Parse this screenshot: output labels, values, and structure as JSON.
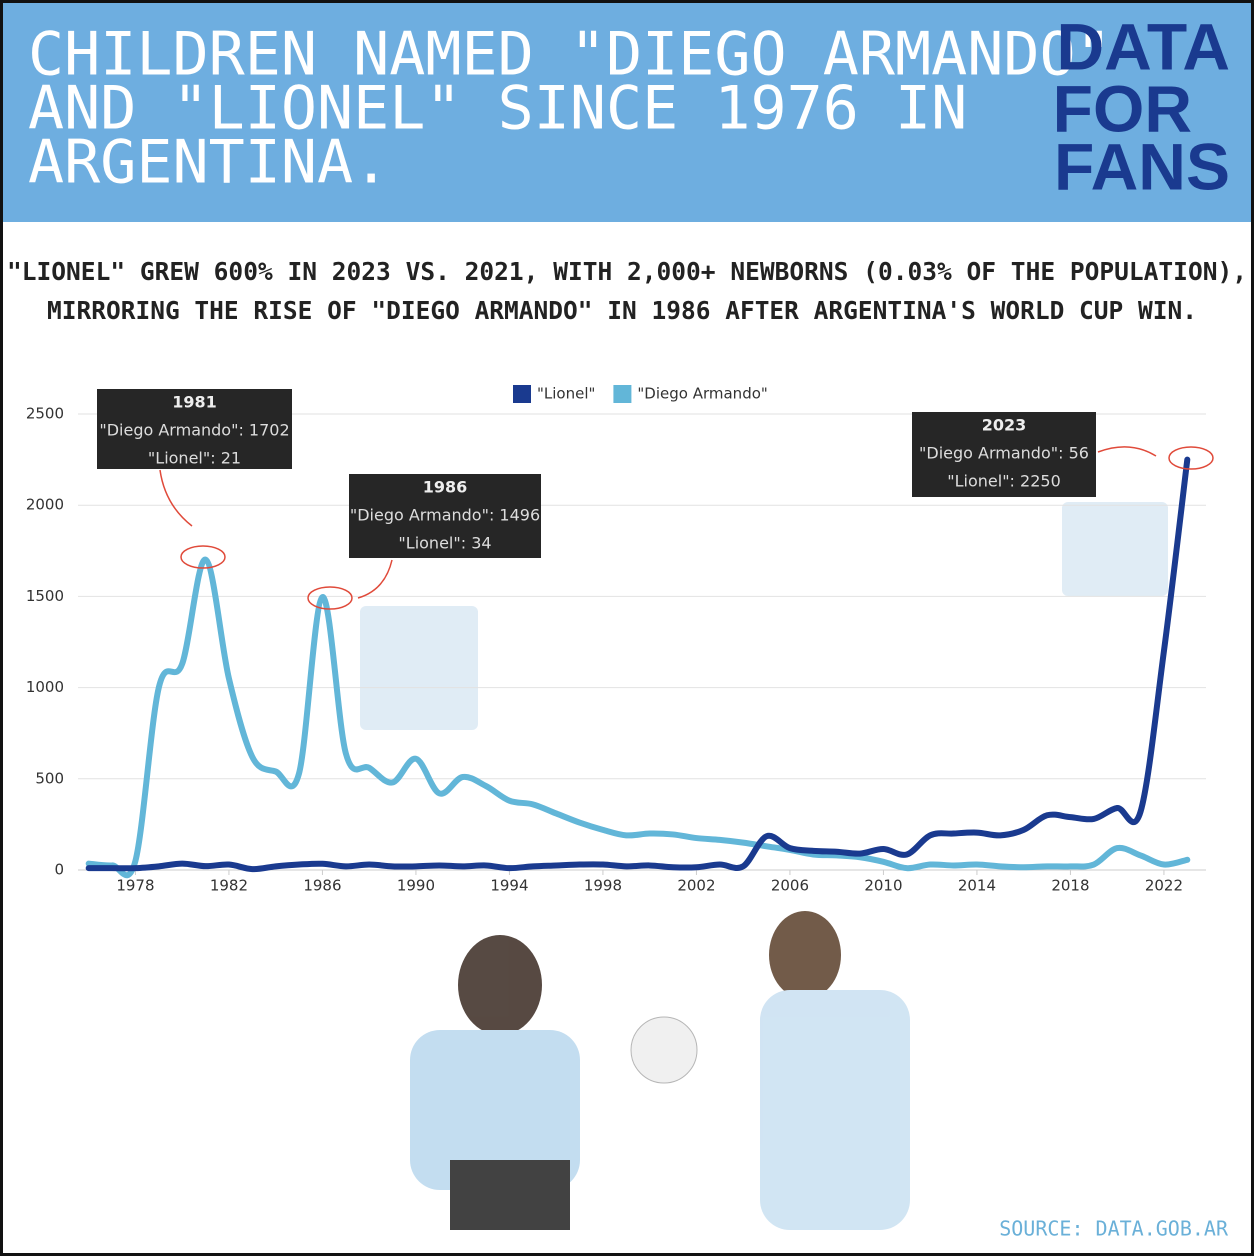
{
  "chart_data": {
    "type": "line",
    "title": [
      "CHILDREN NAMED \"DIEGO ARMANDO\"",
      "AND \"LIONEL\" SINCE 1976 IN",
      "ARGENTINA."
    ],
    "brand": [
      "DATA",
      "FOR",
      "FANS"
    ],
    "subtitle": [
      "\"LIONEL\" GREW 600% IN 2023 VS. 2021, WITH 2,000+ NEWBORNS (0.03% OF THE POPULATION),",
      "MIRRORING THE RISE OF \"DIEGO ARMANDO\" IN 1986 AFTER ARGENTINA'S WORLD CUP WIN."
    ],
    "source": "SOURCE: DATA.GOB.AR",
    "x": [
      1976,
      1977,
      1978,
      1979,
      1980,
      1981,
      1982,
      1983,
      1984,
      1985,
      1986,
      1987,
      1988,
      1989,
      1990,
      1991,
      1992,
      1993,
      1994,
      1995,
      1996,
      1997,
      1998,
      1999,
      2000,
      2001,
      2002,
      2003,
      2004,
      2005,
      2006,
      2007,
      2008,
      2009,
      2010,
      2011,
      2012,
      2013,
      2014,
      2015,
      2016,
      2017,
      2018,
      2019,
      2020,
      2021,
      2022,
      2023
    ],
    "series": [
      {
        "name": "\"Lionel\"",
        "color": "#1a3a8f",
        "values": [
          10,
          10,
          10,
          20,
          35,
          21,
          30,
          5,
          20,
          30,
          34,
          20,
          30,
          20,
          20,
          25,
          20,
          25,
          10,
          20,
          25,
          30,
          30,
          20,
          25,
          15,
          15,
          30,
          20,
          185,
          120,
          105,
          100,
          90,
          115,
          85,
          190,
          200,
          205,
          190,
          220,
          300,
          290,
          280,
          340,
          320,
          1200,
          2250
        ]
      },
      {
        "name": "\"Diego Armando\"",
        "color": "#62b6d8",
        "values": [
          35,
          25,
          50,
          1000,
          1130,
          1702,
          1050,
          620,
          540,
          530,
          1496,
          640,
          560,
          480,
          610,
          420,
          510,
          460,
          380,
          360,
          310,
          260,
          220,
          190,
          200,
          195,
          175,
          165,
          150,
          130,
          110,
          85,
          80,
          70,
          45,
          10,
          30,
          25,
          30,
          20,
          15,
          20,
          20,
          30,
          120,
          80,
          30,
          56
        ]
      }
    ],
    "xlim": [
      1975.8,
      2023.8
    ],
    "ylim": [
      0,
      2500
    ],
    "xticks": [
      1978,
      1982,
      1986,
      1990,
      1994,
      1998,
      2002,
      2006,
      2010,
      2014,
      2018,
      2022
    ],
    "yticks": [
      0,
      500,
      1000,
      1500,
      2000,
      2500
    ],
    "grid": true,
    "legend": "top",
    "annotations": [
      {
        "title": "1981",
        "lines": [
          "\"Diego Armando\": 1702",
          "\"Lionel\": 21"
        ]
      },
      {
        "title": "1986",
        "lines": [
          "\"Diego Armando\": 1496",
          "\"Lionel\": 34"
        ]
      },
      {
        "title": "2023",
        "lines": [
          "\"Diego Armando\": 56",
          "\"Lionel\": 2250"
        ]
      }
    ]
  }
}
